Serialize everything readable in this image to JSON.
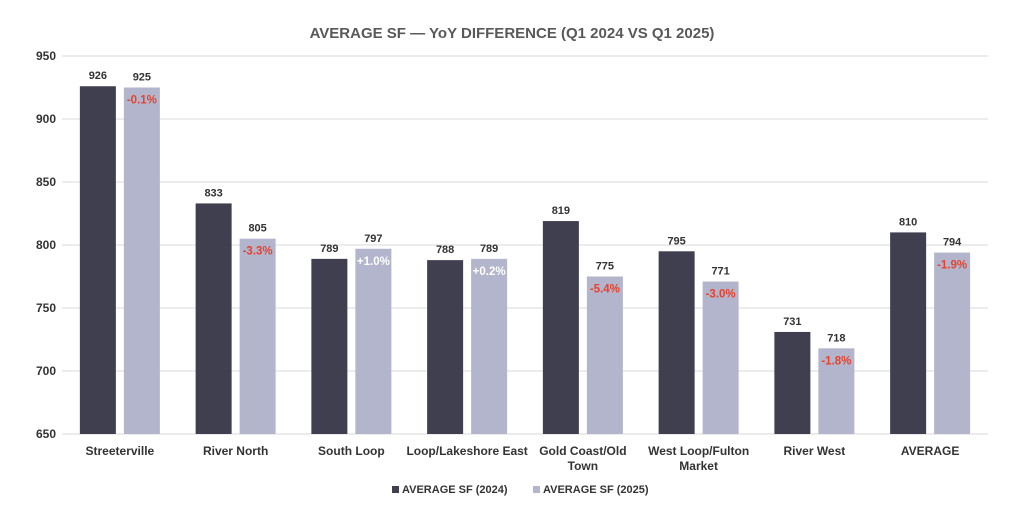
{
  "chart_data": {
    "type": "bar",
    "title": "AVERAGE SF  — YoY DIFFERENCE (Q1 2024 VS Q1 2025)",
    "categories": [
      [
        "Streeterville"
      ],
      [
        "River North"
      ],
      [
        "South Loop"
      ],
      [
        "Loop/Lakeshore East"
      ],
      [
        "Gold Coast/Old",
        "Town"
      ],
      [
        "West Loop/Fulton",
        "Market"
      ],
      [
        "River West"
      ],
      [
        "AVERAGE"
      ]
    ],
    "series": [
      {
        "name": "AVERAGE SF (2024)",
        "color": "#3f3f4f",
        "values": [
          926,
          833,
          789,
          788,
          819,
          795,
          731,
          810
        ]
      },
      {
        "name": "AVERAGE SF (2025)",
        "color": "#b3b5cc",
        "values": [
          925,
          805,
          797,
          789,
          775,
          771,
          718,
          794
        ]
      }
    ],
    "yoy_labels": [
      "-0.1%",
      "-3.3%",
      "+1.0%",
      "+0.2%",
      "-5.4%",
      "-3.0%",
      "-1.8%",
      "-1.9%"
    ],
    "yoy_colors": {
      "negative": "#e8412c",
      "positive": "#ffffff"
    },
    "ylim": [
      650,
      950
    ],
    "yticks": [
      650,
      700,
      750,
      800,
      850,
      900,
      950
    ],
    "grid": true,
    "legend_position": "bottom"
  }
}
